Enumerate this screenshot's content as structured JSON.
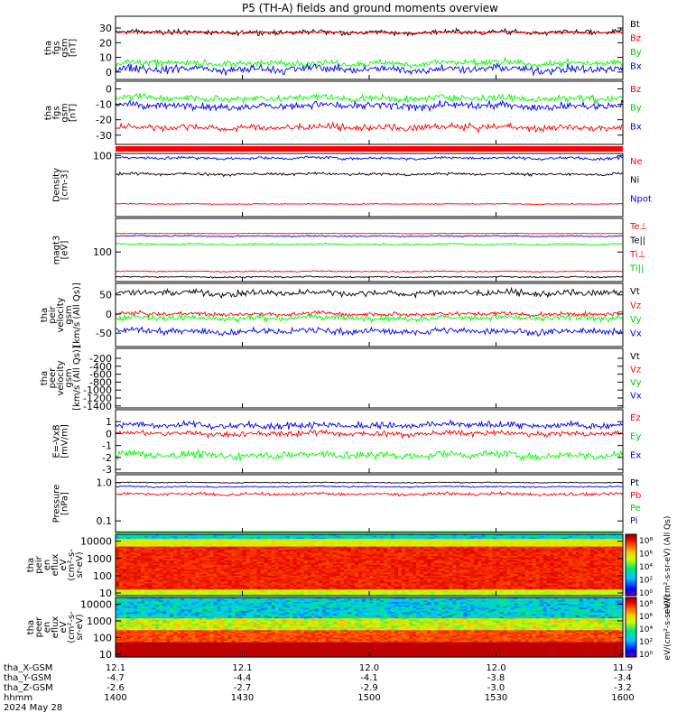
{
  "title": "P5 (TH-A) fields and ground moments overview",
  "chart_data": [
    {
      "type": "line",
      "ylabel_lines": [
        "tha",
        "fgs",
        "gsm",
        "[nT]"
      ],
      "ylim": [
        -5,
        38
      ],
      "yticks": [
        "0",
        "10",
        "20",
        "30"
      ],
      "ytick_values": [
        0,
        10,
        20,
        30
      ],
      "series": [
        {
          "name": "Bt",
          "color": "#000000",
          "base": 27,
          "amp": 3.0
        },
        {
          "name": "Bz",
          "color": "#ff0000",
          "base": 27,
          "amp": 1.5
        },
        {
          "name": "By",
          "color": "#00ff00",
          "base": 6,
          "amp": 4
        },
        {
          "name": "Bx",
          "color": "#0000ff",
          "base": 2,
          "amp": 5
        }
      ]
    },
    {
      "type": "line",
      "ylabel_lines": [
        "tha",
        "fgs",
        "gsm",
        "[nT]"
      ],
      "ylim": [
        -36,
        5
      ],
      "yticks": [
        "0",
        "-10",
        "-20",
        "-30"
      ],
      "ytick_values": [
        0,
        -10,
        -20,
        -30
      ],
      "series": [
        {
          "name": "Bz",
          "color": "#ff0000",
          "base": -25,
          "amp": 4
        },
        {
          "name": "By",
          "color": "#00ff00",
          "base": -6,
          "amp": 4
        },
        {
          "name": "Bx",
          "color": "#0000ff",
          "base": -11,
          "amp": 4.5
        }
      ]
    },
    {
      "type": "line",
      "ylabel_lines": [
        "Density",
        "[cm-3]"
      ],
      "ylim": [
        0.5,
        120
      ],
      "ylog": true,
      "yticks": [
        "100"
      ],
      "ytick_values": [
        100
      ],
      "series": [
        {
          "name": "Ne",
          "color": "#ff0000",
          "base": 1.5,
          "amp": 0.1
        },
        {
          "name": "Ni",
          "color": "#000000",
          "base": 20,
          "amp": 4
        },
        {
          "name": "Npot",
          "color": "#0000ff",
          "base": 80,
          "amp": 18
        }
      ]
    },
    {
      "type": "line",
      "ylabel_lines": [
        "magt3",
        "[eV]"
      ],
      "ylim": [
        5,
        3000
      ],
      "ylog": true,
      "yticks": [
        "100"
      ],
      "ytick_values": [
        100
      ],
      "series": [
        {
          "name": "Te⊥",
          "color": "#ff0000",
          "base": 650,
          "amp": 30
        },
        {
          "name": "Te||",
          "color": "#000000",
          "base": 8,
          "amp": 1
        },
        {
          "name": "Ti⊥",
          "color": "#ff0000",
          "base": 14,
          "amp": 1.5
        },
        {
          "name": "Ti||",
          "color": "#00ff00",
          "base": 220,
          "amp": 40
        }
      ],
      "extra_series": [
        {
          "name": "Ti_blue",
          "color": "#0000ff",
          "base": 500,
          "amp": 60
        }
      ]
    },
    {
      "type": "line",
      "ylabel_lines": [
        "tha",
        "peir",
        "velocity",
        "gsm",
        "[km/s (All Qs)]"
      ],
      "ylim": [
        -85,
        80
      ],
      "yticks": [
        "50",
        "0",
        "-50"
      ],
      "ytick_values": [
        50,
        0,
        -50
      ],
      "series": [
        {
          "name": "Vt",
          "color": "#000000",
          "base": 55,
          "amp": 15
        },
        {
          "name": "Vz",
          "color": "#ff0000",
          "base": 0,
          "amp": 10
        },
        {
          "name": "Vy",
          "color": "#00ff00",
          "base": -10,
          "amp": 14
        },
        {
          "name": "Vx",
          "color": "#0000ff",
          "base": -45,
          "amp": 15
        }
      ]
    },
    {
      "type": "line",
      "ylabel_lines": [
        "tha",
        "peer",
        "velocity",
        "gsm",
        "[km/s (All Qs)]"
      ],
      "ylim": [
        -1450,
        50
      ],
      "yticks": [
        "-200",
        "-400",
        "-600",
        "-800",
        "-1000",
        "-1200",
        "-1400"
      ],
      "ytick_values": [
        -200,
        -400,
        -600,
        -800,
        -1000,
        -1200,
        -1400
      ],
      "series": [
        {
          "name": "Vt",
          "color": "#000000"
        },
        {
          "name": "Vz",
          "color": "#ff0000"
        },
        {
          "name": "Vy",
          "color": "#00ff00"
        },
        {
          "name": "Vx",
          "color": "#0000ff"
        }
      ]
    },
    {
      "type": "line",
      "ylabel_lines": [
        "E=-VxB",
        "[mV/m]"
      ],
      "ylim": [
        -3.3,
        2
      ],
      "yticks": [
        "1",
        "0",
        "-1",
        "-2",
        "-3"
      ],
      "ytick_values": [
        1,
        0,
        -1,
        -2,
        -3
      ],
      "series": [
        {
          "name": "Ez",
          "color": "#ff0000",
          "base": 0,
          "amp": 0.4
        },
        {
          "name": "Ey",
          "color": "#00ff00",
          "base": -1.8,
          "amp": 0.6
        },
        {
          "name": "Ex",
          "color": "#0000ff",
          "base": 0.7,
          "amp": 0.5
        }
      ]
    },
    {
      "type": "line",
      "ylabel_lines": [
        "Pressure",
        "[nPa]"
      ],
      "ylim": [
        0.05,
        1.6
      ],
      "ylog": true,
      "yticks": [
        "1.0",
        "0.1"
      ],
      "ytick_values": [
        1.0,
        0.1
      ],
      "series": [
        {
          "name": "Pt",
          "color": "#000000",
          "base": 1.0,
          "amp": 0.05
        },
        {
          "name": "Pb",
          "color": "#ff0000",
          "base": 0.5,
          "amp": 0.08
        },
        {
          "name": "Pe",
          "color": "#00ff00",
          "base": 0.018,
          "amp": 0.002
        },
        {
          "name": "Pi",
          "color": "#0000ff",
          "base": 0.78,
          "amp": 0.06
        }
      ]
    },
    {
      "type": "heatmap",
      "ylabel_lines": [
        "tha",
        "peir",
        "en",
        "eflux",
        "eV",
        "(cm²-s-",
        "sr-eV)"
      ],
      "ylim": [
        7,
        25000
      ],
      "ylog": true,
      "yticks": [
        "10000",
        "1000",
        "100",
        "10"
      ],
      "ytick_values": [
        10000,
        1000,
        100,
        10
      ],
      "species": "ion"
    },
    {
      "type": "heatmap",
      "ylabel_lines": [
        "tha",
        "peer",
        "en",
        "eflux",
        "eV",
        "(cm²-s-",
        "sr-eV)"
      ],
      "ylim": [
        7,
        25000
      ],
      "ylog": true,
      "yticks": [
        "10000",
        "1000",
        "100",
        "10"
      ],
      "ytick_values": [
        10000,
        1000,
        100,
        10
      ],
      "species": "electron"
    }
  ],
  "colorbars": [
    {
      "ticks": [
        "10⁸",
        "10⁶",
        "10⁴",
        "10²",
        "10⁰"
      ],
      "label": "eV/(cm²-s-sr-eV) (All Qs)"
    },
    {
      "ticks": [
        "10⁸",
        "10⁶",
        "10⁴",
        "10²",
        "10⁰"
      ],
      "label": "eV/(cm²-s-sr-eV)"
    }
  ],
  "xaxis": {
    "rows": [
      {
        "label": "tha_X-GSM",
        "values": [
          "12.1",
          "12.1",
          "12.0",
          "12.0",
          "11.9"
        ]
      },
      {
        "label": "tha_Y-GSM",
        "values": [
          "-4.7",
          "-4.4",
          "-4.1",
          "-3.8",
          "-3.4"
        ]
      },
      {
        "label": "tha_Z-GSM",
        "values": [
          "-2.6",
          "-2.7",
          "-2.9",
          "-3.0",
          "-3.2"
        ]
      },
      {
        "label": "hhmm",
        "values": [
          "1400",
          "1430",
          "1500",
          "1530",
          "1600"
        ]
      }
    ],
    "date": "2024 May 28"
  }
}
